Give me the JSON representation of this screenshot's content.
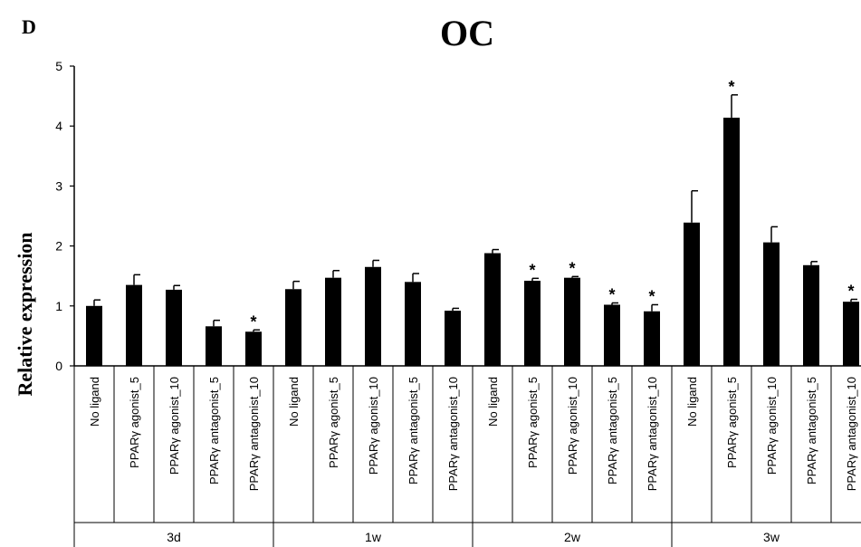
{
  "panel_letter": "D",
  "chart_data": {
    "type": "bar",
    "title": "OC",
    "xlabel": "",
    "ylabel": "Relative expression",
    "ylim": [
      0,
      5
    ],
    "yticks": [
      0,
      1,
      2,
      3,
      4,
      5
    ],
    "grid": false,
    "legend": "none",
    "bar_color": "#000000",
    "groups": [
      {
        "label": "3d",
        "categories": [
          "No ligand",
          "PPARγ agonist_5",
          "PPARγ agonist_10",
          "PPARγ antagonist_5",
          "PPARγ antagonist_10"
        ],
        "values": [
          1.0,
          1.35,
          1.27,
          0.66,
          0.57
        ],
        "errors": [
          0.1,
          0.17,
          0.07,
          0.1,
          0.03
        ],
        "significant": [
          false,
          false,
          false,
          false,
          true
        ]
      },
      {
        "label": "1w",
        "categories": [
          "No ligand",
          "PPARγ agonist_5",
          "PPARγ agonist_10",
          "PPARγ antagonist_5",
          "PPARγ antagonist_10"
        ],
        "values": [
          1.28,
          1.47,
          1.65,
          1.4,
          0.92
        ],
        "errors": [
          0.13,
          0.12,
          0.11,
          0.14,
          0.04
        ],
        "significant": [
          false,
          false,
          false,
          false,
          false
        ]
      },
      {
        "label": "2w",
        "categories": [
          "No ligand",
          "PPARγ agonist_5",
          "PPARγ agonist_10",
          "PPARγ antagonist_5",
          "PPARγ antagonist_10"
        ],
        "values": [
          1.88,
          1.42,
          1.47,
          1.02,
          0.91
        ],
        "errors": [
          0.06,
          0.04,
          0.02,
          0.03,
          0.11
        ],
        "significant": [
          false,
          true,
          true,
          true,
          true
        ]
      },
      {
        "label": "3w",
        "categories": [
          "No ligand",
          "PPARγ agonist_5",
          "PPARγ agonist_10",
          "PPARγ antagonist_5",
          "PPARγ antagonist_10"
        ],
        "values": [
          2.39,
          4.14,
          2.06,
          1.68,
          1.07
        ],
        "errors": [
          0.53,
          0.38,
          0.26,
          0.06,
          0.04
        ],
        "significant": [
          false,
          true,
          false,
          false,
          true
        ]
      }
    ],
    "significance_marker": "*"
  }
}
